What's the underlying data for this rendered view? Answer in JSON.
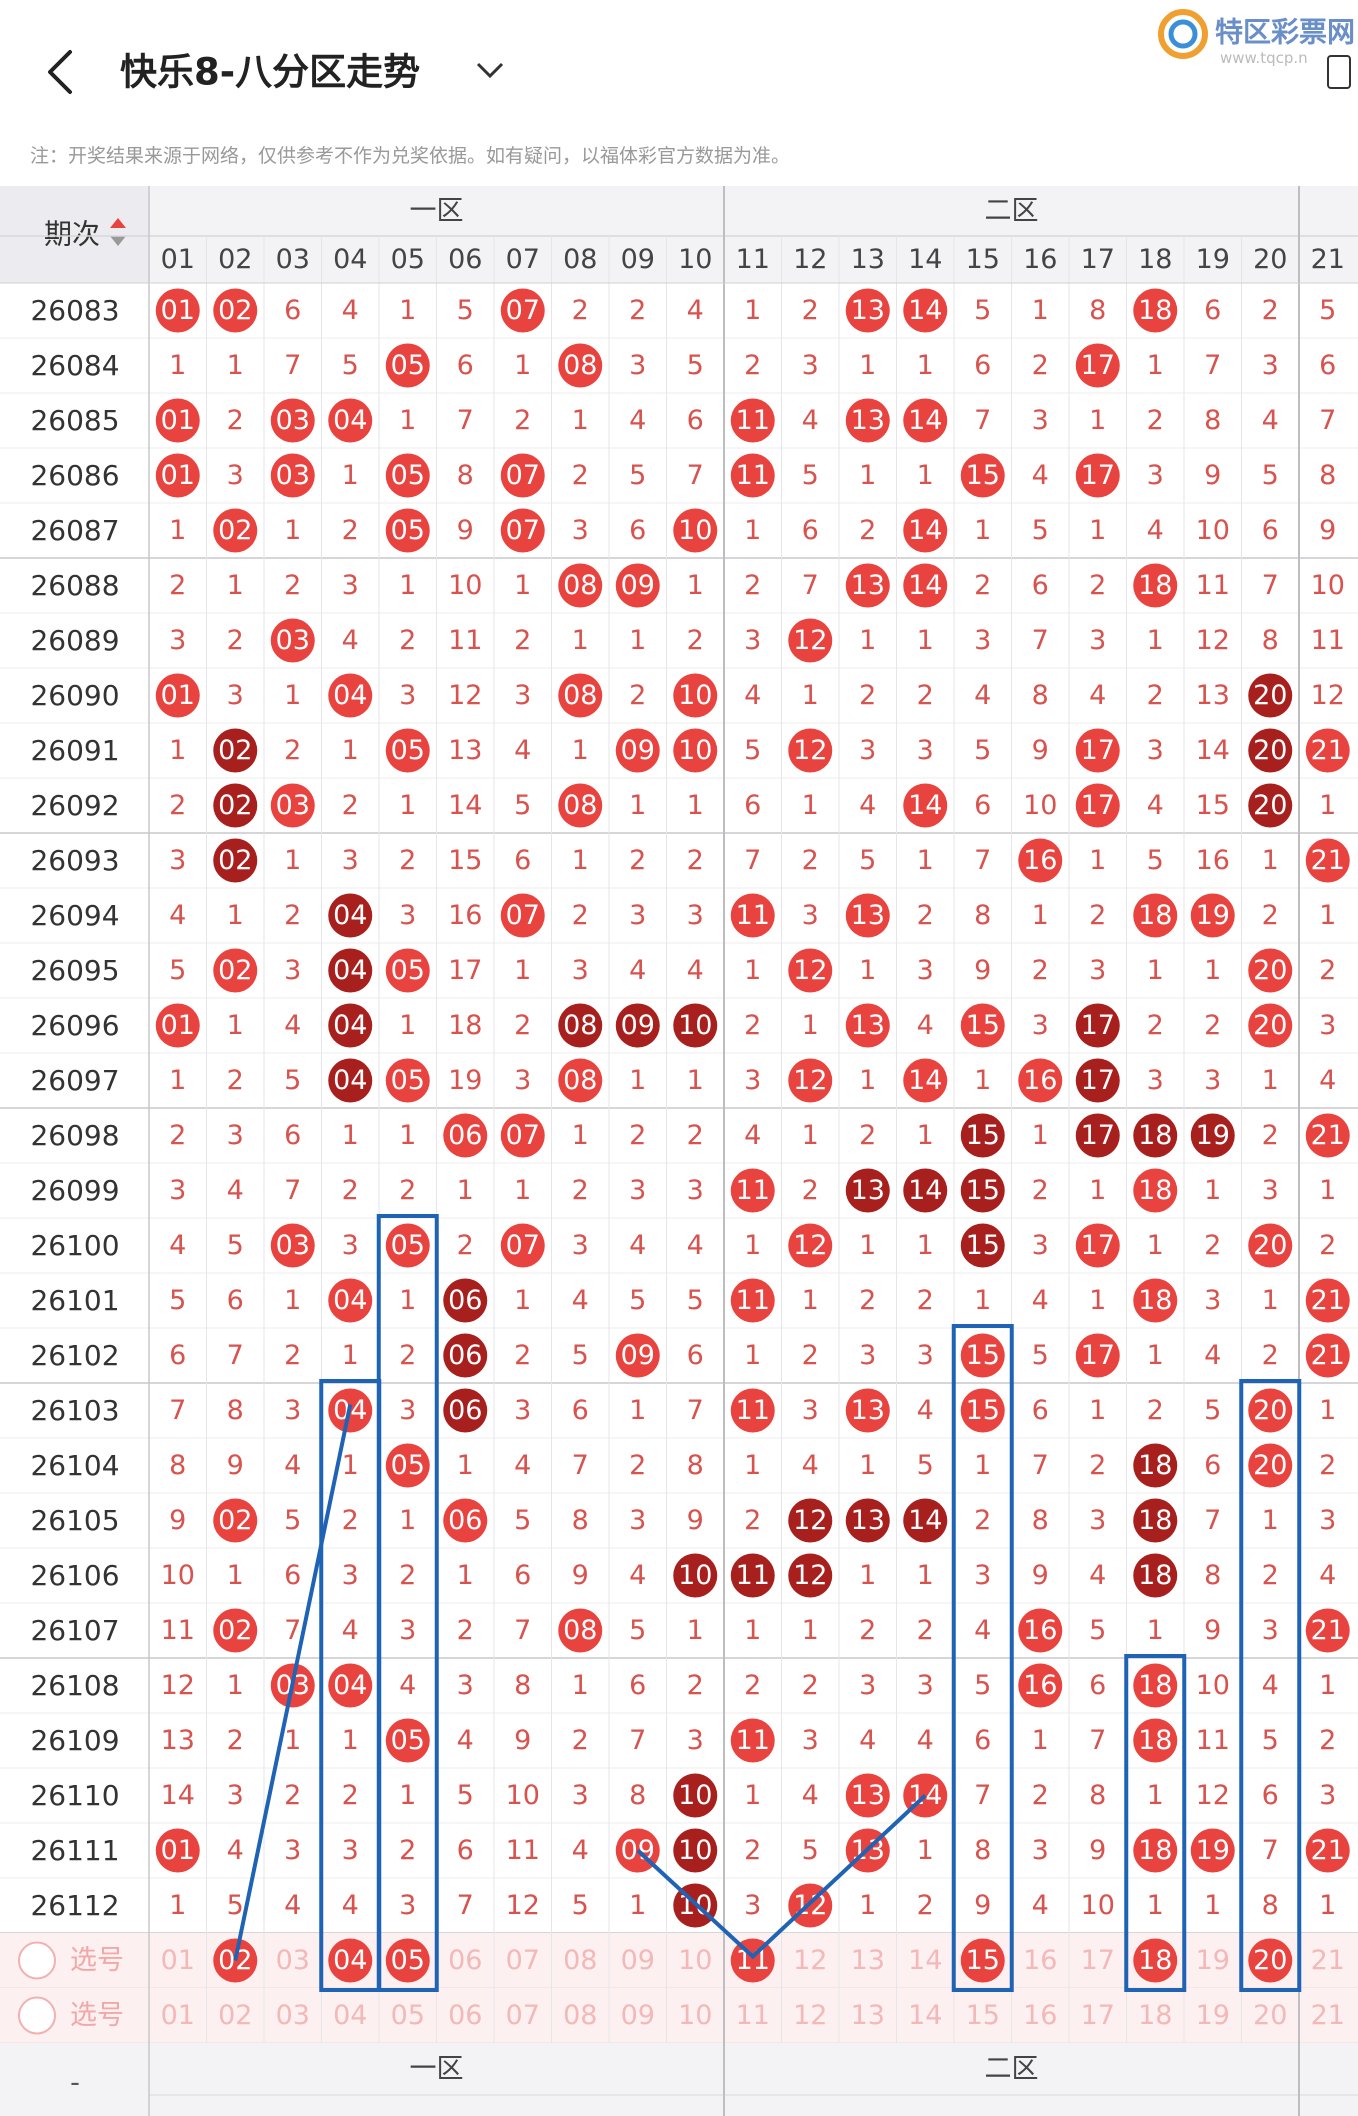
{
  "header": {
    "title": "快乐8-八分区走势",
    "logo": "特区彩票网",
    "logo_url": "www.tqcp.n"
  },
  "note": "注：开奖结果来源于网络，仅供参考不作为兑奖依据。如有疑问，以福体彩官方数据为准。",
  "table": {
    "period_label": "期次",
    "zones": [
      "一区",
      "二区"
    ],
    "columns": [
      "01",
      "02",
      "03",
      "04",
      "05",
      "06",
      "07",
      "08",
      "09",
      "10",
      "11",
      "12",
      "13",
      "14",
      "15",
      "16",
      "17",
      "18",
      "19",
      "20",
      "21"
    ],
    "rows": [
      {
        "period": "26083",
        "cells": [
          "01",
          "02",
          "6",
          "4",
          "1",
          "5",
          "07",
          "2",
          "2",
          "4",
          "1",
          "2",
          "13",
          "14",
          "5",
          "1",
          "8",
          "18",
          "6",
          "2",
          "5"
        ],
        "dark": []
      },
      {
        "period": "26084",
        "cells": [
          "1",
          "1",
          "7",
          "5",
          "05",
          "6",
          "1",
          "08",
          "3",
          "5",
          "2",
          "3",
          "1",
          "1",
          "6",
          "2",
          "17",
          "1",
          "7",
          "3",
          "6"
        ],
        "dark": []
      },
      {
        "period": "26085",
        "cells": [
          "01",
          "2",
          "03",
          "04",
          "1",
          "7",
          "2",
          "1",
          "4",
          "6",
          "11",
          "4",
          "13",
          "14",
          "7",
          "3",
          "1",
          "2",
          "8",
          "4",
          "7"
        ],
        "dark": []
      },
      {
        "period": "26086",
        "cells": [
          "01",
          "3",
          "03",
          "1",
          "05",
          "8",
          "07",
          "2",
          "5",
          "7",
          "11",
          "5",
          "1",
          "1",
          "15",
          "4",
          "17",
          "3",
          "9",
          "5",
          "8"
        ],
        "dark": []
      },
      {
        "period": "26087",
        "cells": [
          "1",
          "02",
          "1",
          "2",
          "05",
          "9",
          "07",
          "3",
          "6",
          "10",
          "1",
          "6",
          "2",
          "14",
          "1",
          "5",
          "1",
          "4",
          "10",
          "6",
          "9"
        ],
        "dark": []
      },
      {
        "period": "26088",
        "cells": [
          "2",
          "1",
          "2",
          "3",
          "1",
          "10",
          "1",
          "08",
          "09",
          "1",
          "2",
          "7",
          "13",
          "14",
          "2",
          "6",
          "2",
          "18",
          "11",
          "7",
          "10"
        ],
        "dark": []
      },
      {
        "period": "26089",
        "cells": [
          "3",
          "2",
          "03",
          "4",
          "2",
          "11",
          "2",
          "1",
          "1",
          "2",
          "3",
          "12",
          "1",
          "1",
          "3",
          "7",
          "3",
          "1",
          "12",
          "8",
          "11"
        ],
        "dark": []
      },
      {
        "period": "26090",
        "cells": [
          "01",
          "3",
          "1",
          "04",
          "3",
          "12",
          "3",
          "08",
          "2",
          "10",
          "4",
          "1",
          "2",
          "2",
          "4",
          "8",
          "4",
          "2",
          "13",
          "20",
          "12"
        ],
        "dark": [
          "20"
        ]
      },
      {
        "period": "26091",
        "cells": [
          "1",
          "02",
          "2",
          "1",
          "05",
          "13",
          "4",
          "1",
          "09",
          "10",
          "5",
          "12",
          "3",
          "3",
          "5",
          "9",
          "17",
          "3",
          "14",
          "20",
          "21"
        ],
        "dark": [
          "02",
          "20"
        ]
      },
      {
        "period": "26092",
        "cells": [
          "2",
          "02",
          "03",
          "2",
          "1",
          "14",
          "5",
          "08",
          "1",
          "1",
          "6",
          "1",
          "4",
          "14",
          "6",
          "10",
          "17",
          "4",
          "15",
          "20",
          "1"
        ],
        "dark": [
          "02",
          "20"
        ]
      },
      {
        "period": "26093",
        "cells": [
          "3",
          "02",
          "1",
          "3",
          "2",
          "15",
          "6",
          "1",
          "2",
          "2",
          "7",
          "2",
          "5",
          "1",
          "7",
          "16",
          "1",
          "5",
          "16",
          "1",
          "21"
        ],
        "dark": [
          "02"
        ]
      },
      {
        "period": "26094",
        "cells": [
          "4",
          "1",
          "2",
          "04",
          "3",
          "16",
          "07",
          "2",
          "3",
          "3",
          "11",
          "3",
          "13",
          "2",
          "8",
          "1",
          "2",
          "18",
          "19",
          "2",
          "1"
        ],
        "dark": [
          "04"
        ]
      },
      {
        "period": "26095",
        "cells": [
          "5",
          "02",
          "3",
          "04",
          "05",
          "17",
          "1",
          "3",
          "4",
          "4",
          "1",
          "12",
          "1",
          "3",
          "9",
          "2",
          "3",
          "1",
          "1",
          "20",
          "2"
        ],
        "dark": [
          "04"
        ]
      },
      {
        "period": "26096",
        "cells": [
          "01",
          "1",
          "4",
          "04",
          "1",
          "18",
          "2",
          "08",
          "09",
          "10",
          "2",
          "1",
          "13",
          "4",
          "15",
          "3",
          "17",
          "2",
          "2",
          "20",
          "3"
        ],
        "dark": [
          "04",
          "08",
          "09",
          "10",
          "17"
        ]
      },
      {
        "period": "26097",
        "cells": [
          "1",
          "2",
          "5",
          "04",
          "05",
          "19",
          "3",
          "08",
          "1",
          "1",
          "3",
          "12",
          "1",
          "14",
          "1",
          "16",
          "17",
          "3",
          "3",
          "1",
          "4"
        ],
        "dark": [
          "04",
          "17"
        ]
      },
      {
        "period": "26098",
        "cells": [
          "2",
          "3",
          "6",
          "1",
          "1",
          "06",
          "07",
          "1",
          "2",
          "2",
          "4",
          "1",
          "2",
          "1",
          "15",
          "1",
          "17",
          "18",
          "19",
          "2",
          "21"
        ],
        "dark": [
          "15",
          "17",
          "18",
          "19"
        ]
      },
      {
        "period": "26099",
        "cells": [
          "3",
          "4",
          "7",
          "2",
          "2",
          "1",
          "1",
          "2",
          "3",
          "3",
          "11",
          "2",
          "13",
          "14",
          "15",
          "2",
          "1",
          "18",
          "1",
          "3",
          "1"
        ],
        "dark": [
          "13",
          "14",
          "15"
        ]
      },
      {
        "period": "26100",
        "cells": [
          "4",
          "5",
          "03",
          "3",
          "05",
          "2",
          "07",
          "3",
          "4",
          "4",
          "1",
          "12",
          "1",
          "1",
          "15",
          "3",
          "17",
          "1",
          "2",
          "20",
          "2"
        ],
        "dark": [
          "15"
        ]
      },
      {
        "period": "26101",
        "cells": [
          "5",
          "6",
          "1",
          "04",
          "1",
          "06",
          "1",
          "4",
          "5",
          "5",
          "11",
          "1",
          "2",
          "2",
          "1",
          "4",
          "1",
          "18",
          "3",
          "1",
          "21"
        ],
        "dark": [
          "06"
        ]
      },
      {
        "period": "26102",
        "cells": [
          "6",
          "7",
          "2",
          "1",
          "2",
          "06",
          "2",
          "5",
          "09",
          "6",
          "1",
          "2",
          "3",
          "3",
          "15",
          "5",
          "17",
          "1",
          "4",
          "2",
          "21"
        ],
        "dark": [
          "06"
        ]
      },
      {
        "period": "26103",
        "cells": [
          "7",
          "8",
          "3",
          "04",
          "3",
          "06",
          "3",
          "6",
          "1",
          "7",
          "11",
          "3",
          "13",
          "4",
          "15",
          "6",
          "1",
          "2",
          "5",
          "20",
          "1"
        ],
        "dark": [
          "06"
        ]
      },
      {
        "period": "26104",
        "cells": [
          "8",
          "9",
          "4",
          "1",
          "05",
          "1",
          "4",
          "7",
          "2",
          "8",
          "1",
          "4",
          "1",
          "5",
          "1",
          "7",
          "2",
          "18",
          "6",
          "20",
          "2"
        ],
        "dark": [
          "18"
        ]
      },
      {
        "period": "26105",
        "cells": [
          "9",
          "02",
          "5",
          "2",
          "1",
          "06",
          "5",
          "8",
          "3",
          "9",
          "2",
          "12",
          "13",
          "14",
          "2",
          "8",
          "3",
          "18",
          "7",
          "1",
          "3"
        ],
        "dark": [
          "12",
          "13",
          "14",
          "18"
        ]
      },
      {
        "period": "26106",
        "cells": [
          "10",
          "1",
          "6",
          "3",
          "2",
          "1",
          "6",
          "9",
          "4",
          "10",
          "11",
          "12",
          "1",
          "1",
          "3",
          "9",
          "4",
          "18",
          "8",
          "2",
          "4"
        ],
        "dark": [
          "10",
          "11",
          "12",
          "18"
        ]
      },
      {
        "period": "26107",
        "cells": [
          "11",
          "02",
          "7",
          "4",
          "3",
          "2",
          "7",
          "08",
          "5",
          "1",
          "1",
          "1",
          "2",
          "2",
          "4",
          "16",
          "5",
          "1",
          "9",
          "3",
          "21"
        ],
        "dark": []
      },
      {
        "period": "26108",
        "cells": [
          "12",
          "1",
          "03",
          "04",
          "4",
          "3",
          "8",
          "1",
          "6",
          "2",
          "2",
          "2",
          "3",
          "3",
          "5",
          "16",
          "6",
          "18",
          "10",
          "4",
          "1"
        ],
        "dark": []
      },
      {
        "period": "26109",
        "cells": [
          "13",
          "2",
          "1",
          "1",
          "05",
          "4",
          "9",
          "2",
          "7",
          "3",
          "11",
          "3",
          "4",
          "4",
          "6",
          "1",
          "7",
          "18",
          "11",
          "5",
          "2"
        ],
        "dark": []
      },
      {
        "period": "26110",
        "cells": [
          "14",
          "3",
          "2",
          "2",
          "1",
          "5",
          "10",
          "3",
          "8",
          "10",
          "1",
          "4",
          "13",
          "14",
          "7",
          "2",
          "8",
          "1",
          "12",
          "6",
          "3"
        ],
        "dark": [
          "10"
        ]
      },
      {
        "period": "26111",
        "cells": [
          "01",
          "4",
          "3",
          "3",
          "2",
          "6",
          "11",
          "4",
          "09",
          "10",
          "2",
          "5",
          "13",
          "1",
          "8",
          "3",
          "9",
          "18",
          "19",
          "7",
          "21"
        ],
        "dark": [
          "10"
        ]
      },
      {
        "period": "26112",
        "cells": [
          "1",
          "5",
          "4",
          "4",
          "3",
          "7",
          "12",
          "5",
          "1",
          "10",
          "3",
          "12",
          "1",
          "2",
          "9",
          "4",
          "10",
          "1",
          "1",
          "8",
          "1"
        ],
        "dark": [
          "10"
        ]
      }
    ],
    "select_rows": [
      {
        "label": "选号",
        "picked": [
          "02",
          "04",
          "05",
          "11",
          "15",
          "18",
          "20"
        ]
      },
      {
        "label": "选号",
        "picked": []
      }
    ],
    "footer_first": "-"
  }
}
